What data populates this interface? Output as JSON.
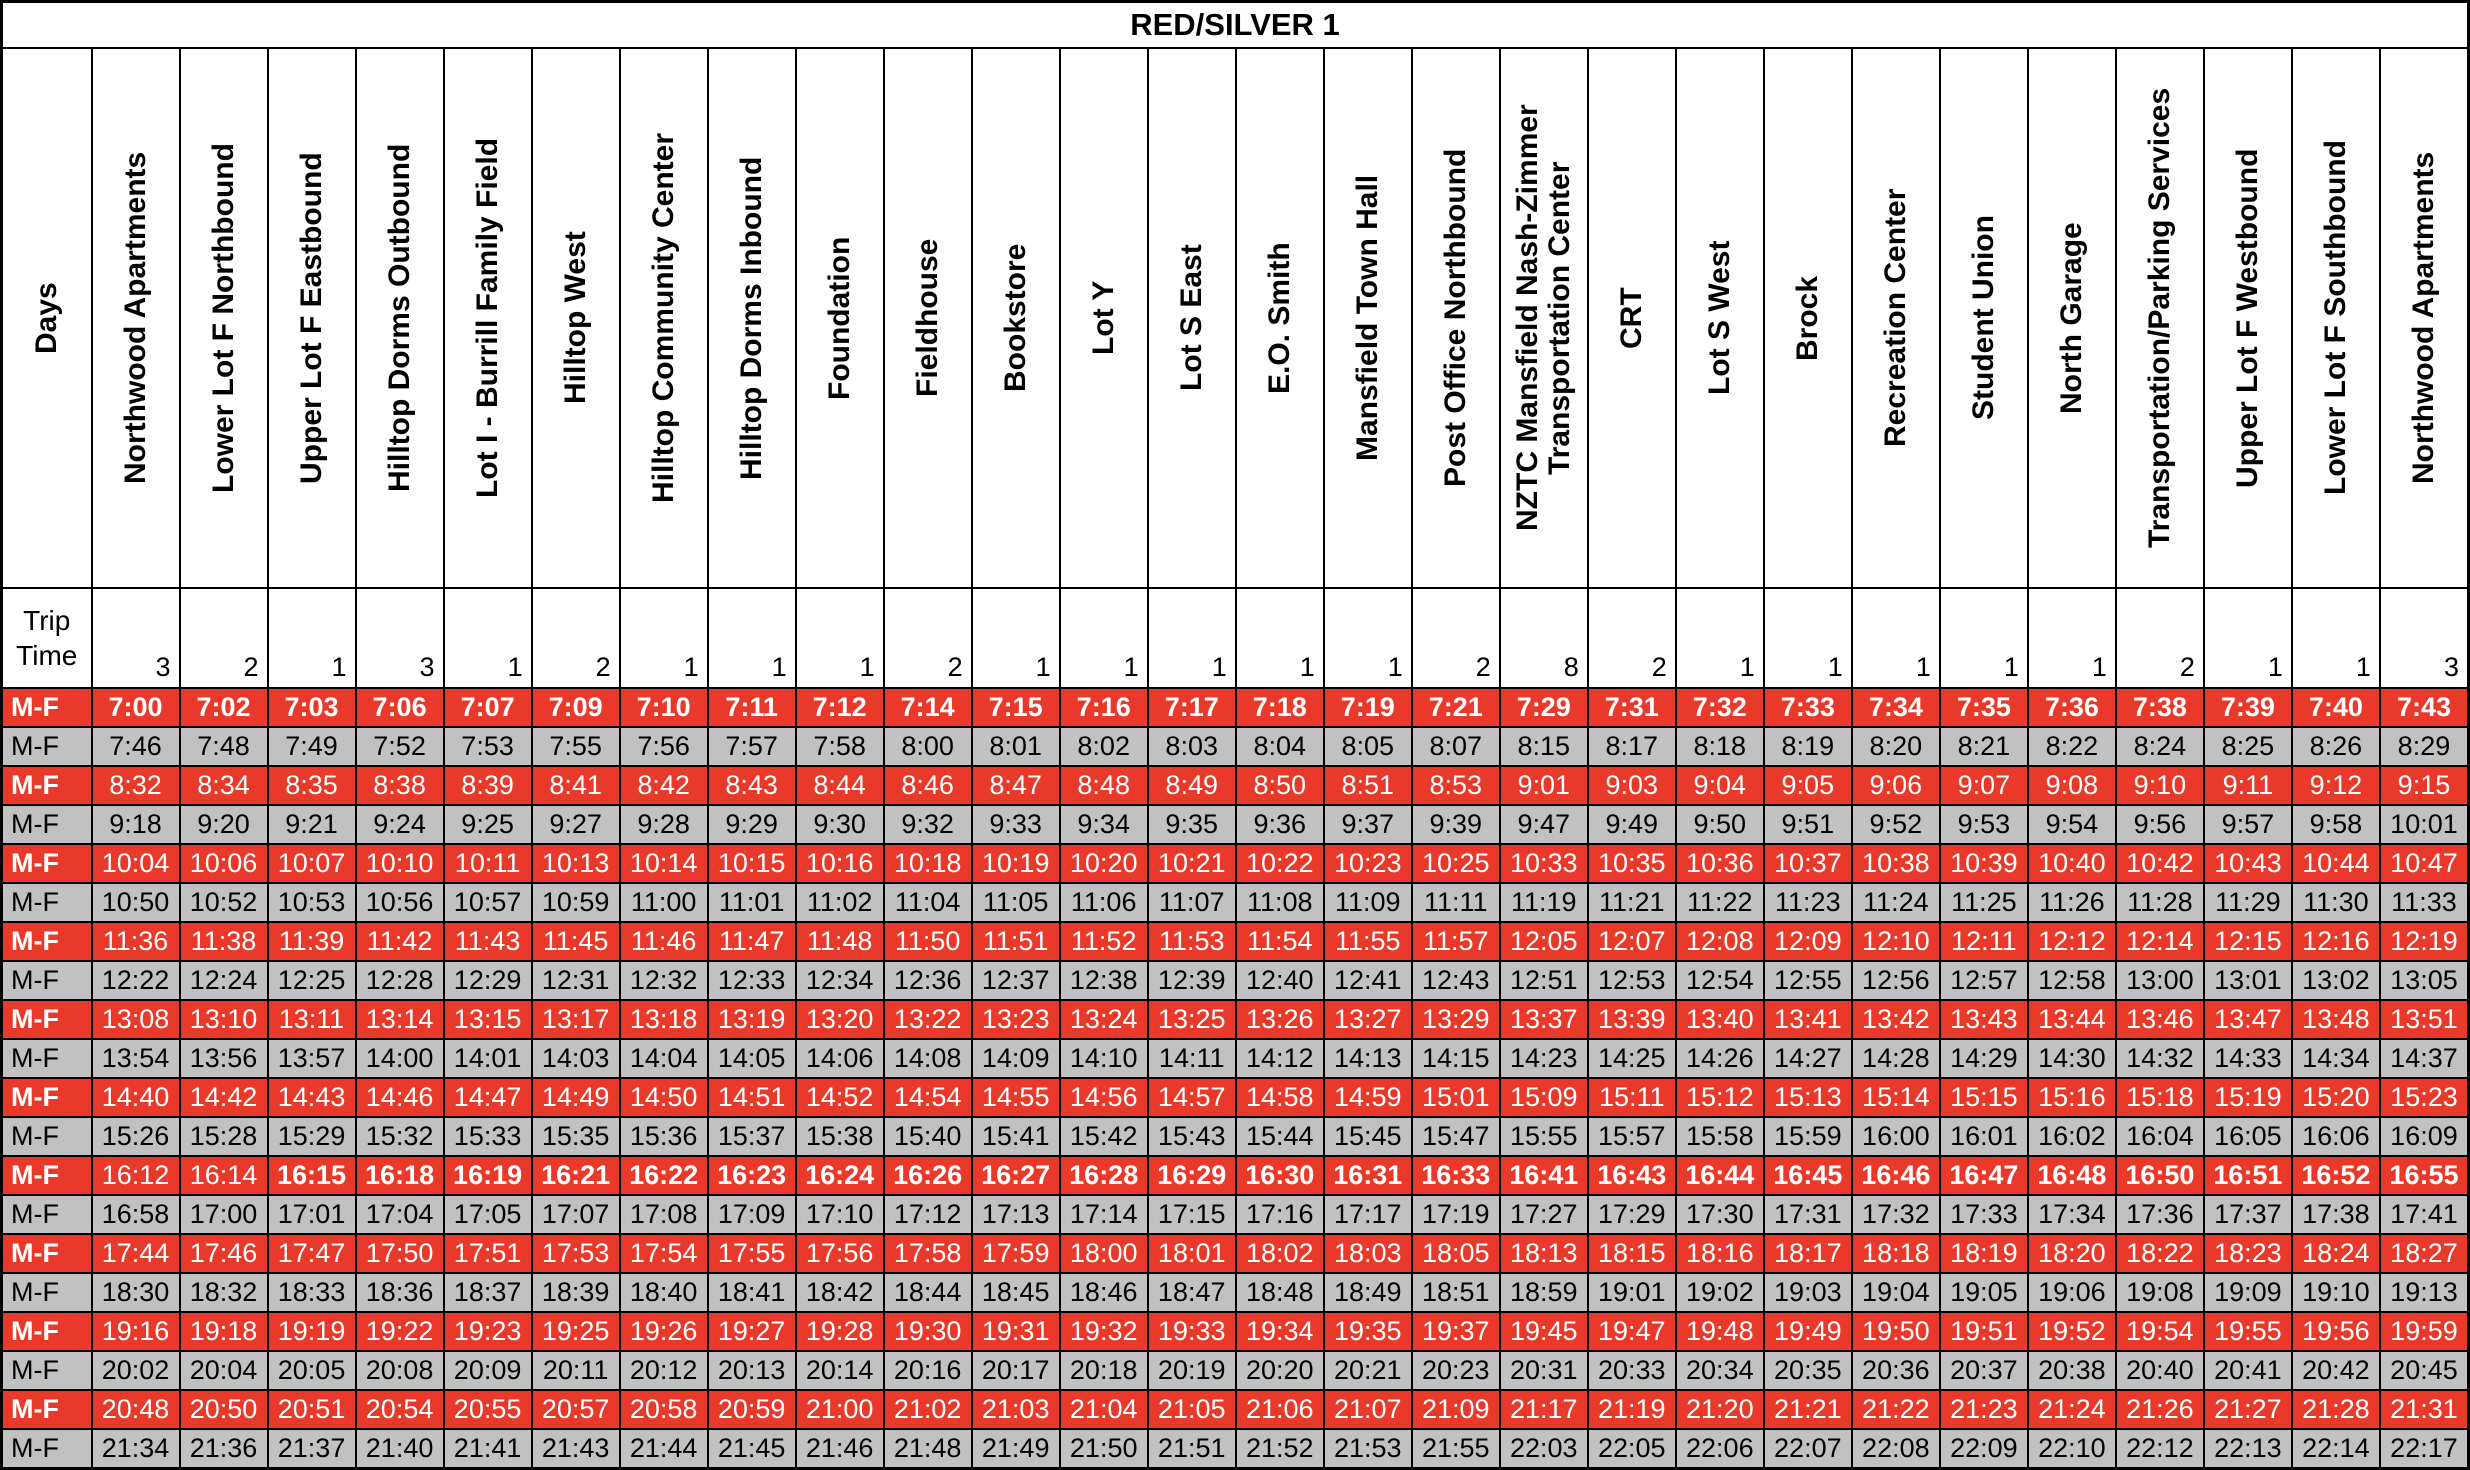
{
  "title": "RED/SILVER 1",
  "colors": {
    "red_row": "#e8392b",
    "gray_row": "#c1c1c1",
    "border": "#000000",
    "red_row_text": "#ffffff",
    "text": "#000000"
  },
  "table": {
    "days_header": "Days",
    "trip_time_label": "Trip Time",
    "stops": [
      "Northwood Apartments",
      "Lower Lot F Northbound",
      "Upper Lot F Eastbound",
      "Hilltop Dorms Outbound",
      "Lot I - Burrill Family Field",
      "Hilltop West",
      "Hilltop Community Center",
      "Hilltop Dorms Inbound",
      "Foundation",
      "Fieldhouse",
      "Bookstore",
      "Lot Y",
      "Lot S East",
      "E.O. Smith",
      "Mansfield Town Hall",
      "Post Office Northbound",
      "NZTC Mansfield Nash-Zimmer Transportation Center",
      "CRT",
      "Lot S West",
      "Brock",
      "Recreation Center",
      "Student Union",
      "North Garage",
      "Transportation/Parking Services",
      "Upper Lot F Westbound",
      "Lower Lot F Southbound",
      "Northwood Apartments"
    ],
    "trip_times": [
      3,
      2,
      1,
      3,
      1,
      2,
      1,
      1,
      1,
      2,
      1,
      1,
      1,
      1,
      1,
      2,
      8,
      2,
      1,
      1,
      1,
      1,
      1,
      2,
      1,
      1,
      3
    ],
    "rows": [
      {
        "day": "M-F",
        "style": "red",
        "bold_from": 0,
        "times": [
          "7:00",
          "7:02",
          "7:03",
          "7:06",
          "7:07",
          "7:09",
          "7:10",
          "7:11",
          "7:12",
          "7:14",
          "7:15",
          "7:16",
          "7:17",
          "7:18",
          "7:19",
          "7:21",
          "7:29",
          "7:31",
          "7:32",
          "7:33",
          "7:34",
          "7:35",
          "7:36",
          "7:38",
          "7:39",
          "7:40",
          "7:43"
        ]
      },
      {
        "day": "M-F",
        "style": "gray",
        "bold_from": null,
        "times": [
          "7:46",
          "7:48",
          "7:49",
          "7:52",
          "7:53",
          "7:55",
          "7:56",
          "7:57",
          "7:58",
          "8:00",
          "8:01",
          "8:02",
          "8:03",
          "8:04",
          "8:05",
          "8:07",
          "8:15",
          "8:17",
          "8:18",
          "8:19",
          "8:20",
          "8:21",
          "8:22",
          "8:24",
          "8:25",
          "8:26",
          "8:29"
        ]
      },
      {
        "day": "M-F",
        "style": "red",
        "bold_from": null,
        "times": [
          "8:32",
          "8:34",
          "8:35",
          "8:38",
          "8:39",
          "8:41",
          "8:42",
          "8:43",
          "8:44",
          "8:46",
          "8:47",
          "8:48",
          "8:49",
          "8:50",
          "8:51",
          "8:53",
          "9:01",
          "9:03",
          "9:04",
          "9:05",
          "9:06",
          "9:07",
          "9:08",
          "9:10",
          "9:11",
          "9:12",
          "9:15"
        ]
      },
      {
        "day": "M-F",
        "style": "gray",
        "bold_from": null,
        "times": [
          "9:18",
          "9:20",
          "9:21",
          "9:24",
          "9:25",
          "9:27",
          "9:28",
          "9:29",
          "9:30",
          "9:32",
          "9:33",
          "9:34",
          "9:35",
          "9:36",
          "9:37",
          "9:39",
          "9:47",
          "9:49",
          "9:50",
          "9:51",
          "9:52",
          "9:53",
          "9:54",
          "9:56",
          "9:57",
          "9:58",
          "10:01"
        ]
      },
      {
        "day": "M-F",
        "style": "red",
        "bold_from": null,
        "times": [
          "10:04",
          "10:06",
          "10:07",
          "10:10",
          "10:11",
          "10:13",
          "10:14",
          "10:15",
          "10:16",
          "10:18",
          "10:19",
          "10:20",
          "10:21",
          "10:22",
          "10:23",
          "10:25",
          "10:33",
          "10:35",
          "10:36",
          "10:37",
          "10:38",
          "10:39",
          "10:40",
          "10:42",
          "10:43",
          "10:44",
          "10:47"
        ]
      },
      {
        "day": "M-F",
        "style": "gray",
        "bold_from": null,
        "times": [
          "10:50",
          "10:52",
          "10:53",
          "10:56",
          "10:57",
          "10:59",
          "11:00",
          "11:01",
          "11:02",
          "11:04",
          "11:05",
          "11:06",
          "11:07",
          "11:08",
          "11:09",
          "11:11",
          "11:19",
          "11:21",
          "11:22",
          "11:23",
          "11:24",
          "11:25",
          "11:26",
          "11:28",
          "11:29",
          "11:30",
          "11:33"
        ]
      },
      {
        "day": "M-F",
        "style": "red",
        "bold_from": null,
        "times": [
          "11:36",
          "11:38",
          "11:39",
          "11:42",
          "11:43",
          "11:45",
          "11:46",
          "11:47",
          "11:48",
          "11:50",
          "11:51",
          "11:52",
          "11:53",
          "11:54",
          "11:55",
          "11:57",
          "12:05",
          "12:07",
          "12:08",
          "12:09",
          "12:10",
          "12:11",
          "12:12",
          "12:14",
          "12:15",
          "12:16",
          "12:19"
        ]
      },
      {
        "day": "M-F",
        "style": "gray",
        "bold_from": null,
        "times": [
          "12:22",
          "12:24",
          "12:25",
          "12:28",
          "12:29",
          "12:31",
          "12:32",
          "12:33",
          "12:34",
          "12:36",
          "12:37",
          "12:38",
          "12:39",
          "12:40",
          "12:41",
          "12:43",
          "12:51",
          "12:53",
          "12:54",
          "12:55",
          "12:56",
          "12:57",
          "12:58",
          "13:00",
          "13:01",
          "13:02",
          "13:05"
        ]
      },
      {
        "day": "M-F",
        "style": "red",
        "bold_from": null,
        "times": [
          "13:08",
          "13:10",
          "13:11",
          "13:14",
          "13:15",
          "13:17",
          "13:18",
          "13:19",
          "13:20",
          "13:22",
          "13:23",
          "13:24",
          "13:25",
          "13:26",
          "13:27",
          "13:29",
          "13:37",
          "13:39",
          "13:40",
          "13:41",
          "13:42",
          "13:43",
          "13:44",
          "13:46",
          "13:47",
          "13:48",
          "13:51"
        ]
      },
      {
        "day": "M-F",
        "style": "gray",
        "bold_from": null,
        "times": [
          "13:54",
          "13:56",
          "13:57",
          "14:00",
          "14:01",
          "14:03",
          "14:04",
          "14:05",
          "14:06",
          "14:08",
          "14:09",
          "14:10",
          "14:11",
          "14:12",
          "14:13",
          "14:15",
          "14:23",
          "14:25",
          "14:26",
          "14:27",
          "14:28",
          "14:29",
          "14:30",
          "14:32",
          "14:33",
          "14:34",
          "14:37"
        ]
      },
      {
        "day": "M-F",
        "style": "red",
        "bold_from": null,
        "times": [
          "14:40",
          "14:42",
          "14:43",
          "14:46",
          "14:47",
          "14:49",
          "14:50",
          "14:51",
          "14:52",
          "14:54",
          "14:55",
          "14:56",
          "14:57",
          "14:58",
          "14:59",
          "15:01",
          "15:09",
          "15:11",
          "15:12",
          "15:13",
          "15:14",
          "15:15",
          "15:16",
          "15:18",
          "15:19",
          "15:20",
          "15:23"
        ]
      },
      {
        "day": "M-F",
        "style": "gray",
        "bold_from": null,
        "times": [
          "15:26",
          "15:28",
          "15:29",
          "15:32",
          "15:33",
          "15:35",
          "15:36",
          "15:37",
          "15:38",
          "15:40",
          "15:41",
          "15:42",
          "15:43",
          "15:44",
          "15:45",
          "15:47",
          "15:55",
          "15:57",
          "15:58",
          "15:59",
          "16:00",
          "16:01",
          "16:02",
          "16:04",
          "16:05",
          "16:06",
          "16:09"
        ]
      },
      {
        "day": "M-F",
        "style": "red",
        "bold_from": 2,
        "times": [
          "16:12",
          "16:14",
          "16:15",
          "16:18",
          "16:19",
          "16:21",
          "16:22",
          "16:23",
          "16:24",
          "16:26",
          "16:27",
          "16:28",
          "16:29",
          "16:30",
          "16:31",
          "16:33",
          "16:41",
          "16:43",
          "16:44",
          "16:45",
          "16:46",
          "16:47",
          "16:48",
          "16:50",
          "16:51",
          "16:52",
          "16:55"
        ]
      },
      {
        "day": "M-F",
        "style": "gray",
        "bold_from": null,
        "times": [
          "16:58",
          "17:00",
          "17:01",
          "17:04",
          "17:05",
          "17:07",
          "17:08",
          "17:09",
          "17:10",
          "17:12",
          "17:13",
          "17:14",
          "17:15",
          "17:16",
          "17:17",
          "17:19",
          "17:27",
          "17:29",
          "17:30",
          "17:31",
          "17:32",
          "17:33",
          "17:34",
          "17:36",
          "17:37",
          "17:38",
          "17:41"
        ]
      },
      {
        "day": "M-F",
        "style": "red",
        "bold_from": null,
        "times": [
          "17:44",
          "17:46",
          "17:47",
          "17:50",
          "17:51",
          "17:53",
          "17:54",
          "17:55",
          "17:56",
          "17:58",
          "17:59",
          "18:00",
          "18:01",
          "18:02",
          "18:03",
          "18:05",
          "18:13",
          "18:15",
          "18:16",
          "18:17",
          "18:18",
          "18:19",
          "18:20",
          "18:22",
          "18:23",
          "18:24",
          "18:27"
        ]
      },
      {
        "day": "M-F",
        "style": "gray",
        "bold_from": null,
        "times": [
          "18:30",
          "18:32",
          "18:33",
          "18:36",
          "18:37",
          "18:39",
          "18:40",
          "18:41",
          "18:42",
          "18:44",
          "18:45",
          "18:46",
          "18:47",
          "18:48",
          "18:49",
          "18:51",
          "18:59",
          "19:01",
          "19:02",
          "19:03",
          "19:04",
          "19:05",
          "19:06",
          "19:08",
          "19:09",
          "19:10",
          "19:13"
        ]
      },
      {
        "day": "M-F",
        "style": "red",
        "bold_from": null,
        "times": [
          "19:16",
          "19:18",
          "19:19",
          "19:22",
          "19:23",
          "19:25",
          "19:26",
          "19:27",
          "19:28",
          "19:30",
          "19:31",
          "19:32",
          "19:33",
          "19:34",
          "19:35",
          "19:37",
          "19:45",
          "19:47",
          "19:48",
          "19:49",
          "19:50",
          "19:51",
          "19:52",
          "19:54",
          "19:55",
          "19:56",
          "19:59"
        ]
      },
      {
        "day": "M-F",
        "style": "gray",
        "bold_from": null,
        "times": [
          "20:02",
          "20:04",
          "20:05",
          "20:08",
          "20:09",
          "20:11",
          "20:12",
          "20:13",
          "20:14",
          "20:16",
          "20:17",
          "20:18",
          "20:19",
          "20:20",
          "20:21",
          "20:23",
          "20:31",
          "20:33",
          "20:34",
          "20:35",
          "20:36",
          "20:37",
          "20:38",
          "20:40",
          "20:41",
          "20:42",
          "20:45"
        ]
      },
      {
        "day": "M-F",
        "style": "red",
        "bold_from": null,
        "times": [
          "20:48",
          "20:50",
          "20:51",
          "20:54",
          "20:55",
          "20:57",
          "20:58",
          "20:59",
          "21:00",
          "21:02",
          "21:03",
          "21:04",
          "21:05",
          "21:06",
          "21:07",
          "21:09",
          "21:17",
          "21:19",
          "21:20",
          "21:21",
          "21:22",
          "21:23",
          "21:24",
          "21:26",
          "21:27",
          "21:28",
          "21:31"
        ]
      },
      {
        "day": "M-F",
        "style": "gray",
        "bold_from": null,
        "times": [
          "21:34",
          "21:36",
          "21:37",
          "21:40",
          "21:41",
          "21:43",
          "21:44",
          "21:45",
          "21:46",
          "21:48",
          "21:49",
          "21:50",
          "21:51",
          "21:52",
          "21:53",
          "21:55",
          "22:03",
          "22:05",
          "22:06",
          "22:07",
          "22:08",
          "22:09",
          "22:10",
          "22:12",
          "22:13",
          "22:14",
          "22:17"
        ]
      }
    ]
  }
}
